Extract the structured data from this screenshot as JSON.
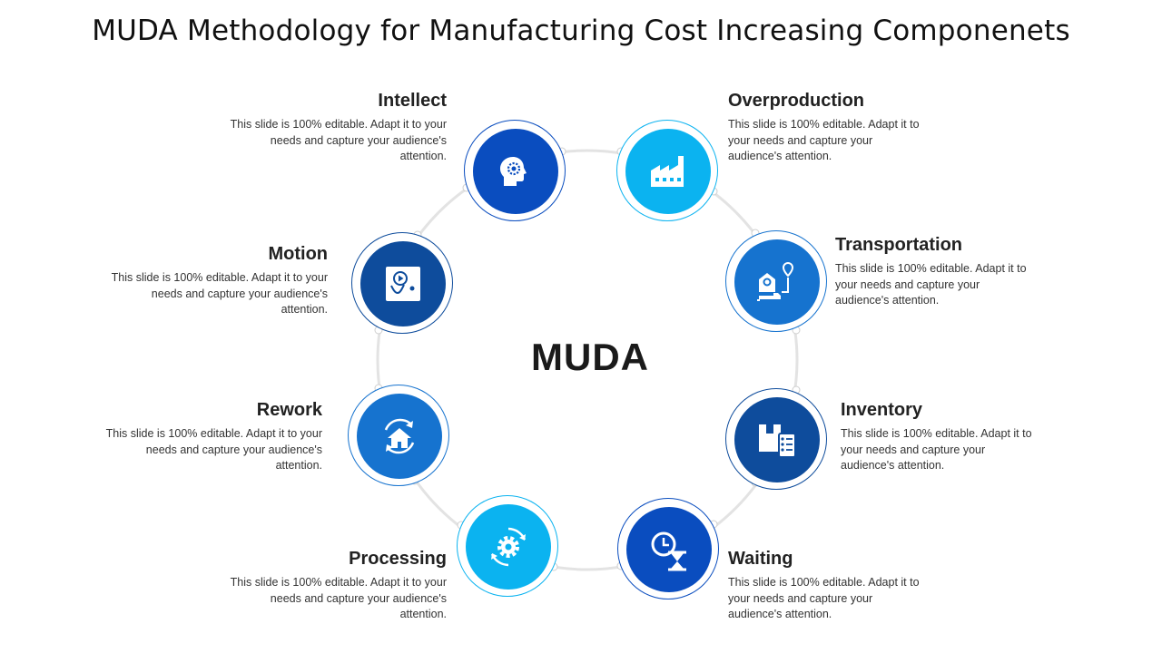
{
  "title": "MUDA Methodology for Manufacturing Cost Increasing Componenets",
  "center_label": "MUDA",
  "colors": {
    "dark_blue": "#0A4DBF",
    "cyan": "#0BB3F0",
    "mid_blue": "#1673CF",
    "navy": "#0E4C9C",
    "ring": "#E3E3E3"
  },
  "items": [
    {
      "name": "Intellect",
      "desc": "This slide is 100% editable. Adapt it to your needs and capture your audience's attention.",
      "icon": "head-gear-icon"
    },
    {
      "name": "Overproduction",
      "desc": "This slide is 100% editable. Adapt it to your needs and capture your audience's attention.",
      "icon": "factory-icon"
    },
    {
      "name": "Transportation",
      "desc": "This slide is 100% editable. Adapt it to your needs and capture your audience's attention.",
      "icon": "route-icon"
    },
    {
      "name": "Inventory",
      "desc": "This slide is 100% editable. Adapt it to your needs and capture your audience's attention.",
      "icon": "inventory-box-icon"
    },
    {
      "name": "Waiting",
      "desc": "This slide is 100% editable. Adapt it to your needs and capture your audience's attention.",
      "icon": "clock-hourglass-icon"
    },
    {
      "name": "Processing",
      "desc": "This slide is 100% editable. Adapt it to your needs and capture your audience's attention.",
      "icon": "gear-cycle-icon"
    },
    {
      "name": "Rework",
      "desc": "This slide is 100% editable. Adapt it to your needs and capture your audience's attention.",
      "icon": "home-refresh-icon"
    },
    {
      "name": "Motion",
      "desc": "This slide is 100% editable. Adapt it to your needs and capture your audience's attention.",
      "icon": "motion-play-icon"
    }
  ]
}
